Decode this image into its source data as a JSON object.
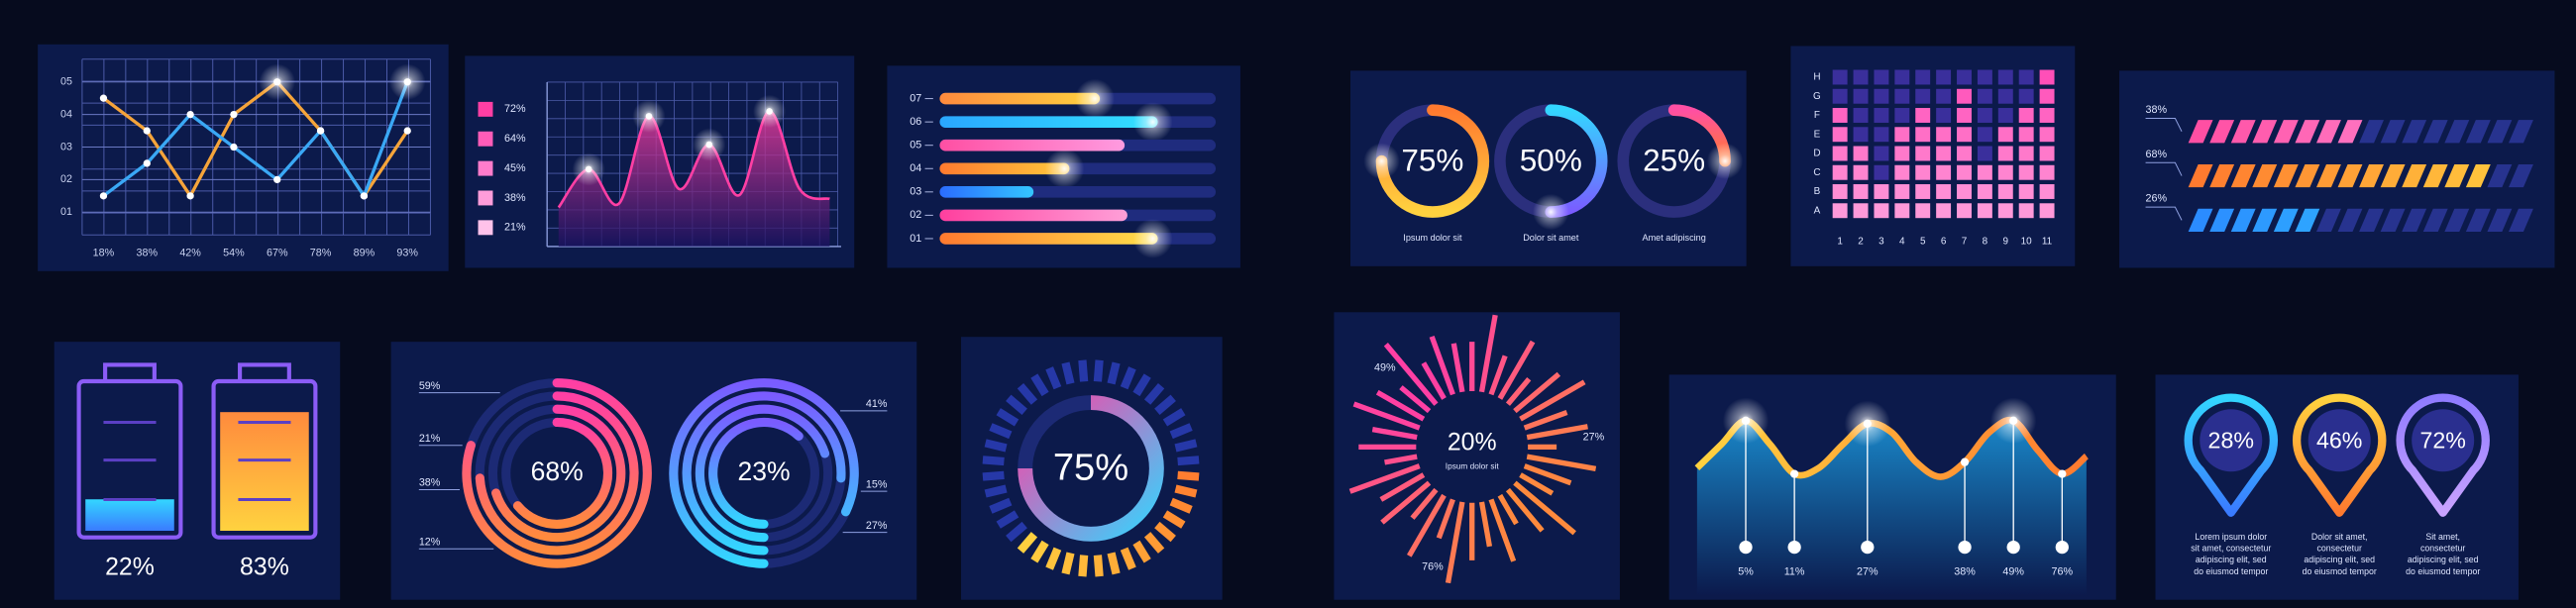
{
  "panels": [
    {
      "type": "line",
      "ylim": [
        0.3,
        5.7
      ],
      "yticks": [
        {
          "value": 1,
          "label": "01"
        },
        {
          "value": 2,
          "label": "02"
        },
        {
          "value": 3,
          "label": "03"
        },
        {
          "value": 4,
          "label": "04"
        },
        {
          "value": 5,
          "label": "05"
        }
      ],
      "categories": [
        "18%",
        "38%",
        "42%",
        "54%",
        "67%",
        "78%",
        "89%",
        "93%"
      ],
      "series": [
        {
          "color": "#f5a43a",
          "values": [
            4.5,
            3.5,
            1.5,
            4,
            5,
            3.5,
            1.5,
            3.5
          ]
        },
        {
          "color": "#3aa8f5",
          "values": [
            1.5,
            2.5,
            4,
            3,
            2,
            3.5,
            1.5,
            5
          ]
        }
      ]
    },
    {
      "type": "area",
      "ylim": [
        0,
        100
      ],
      "color": "#ff3fa4",
      "values": [
        5,
        36,
        8,
        79,
        20,
        56,
        15,
        83,
        20,
        12
      ],
      "legend": [
        {
          "label": "72%",
          "color": "#ff3fa4"
        },
        {
          "label": "64%",
          "color": "#ff5cb8"
        },
        {
          "label": "45%",
          "color": "#ff7ccb"
        },
        {
          "label": "38%",
          "color": "#ff9dda"
        },
        {
          "label": "21%",
          "color": "#ffc2ea"
        }
      ]
    },
    {
      "type": "hbar",
      "xlim": [
        0,
        100
      ],
      "categories": [
        "07",
        "06",
        "05",
        "04",
        "03",
        "02",
        "01"
      ],
      "values": [
        58,
        79,
        67,
        47,
        34,
        68,
        79
      ],
      "colors": [
        [
          "#ff8a3d",
          "#ffd23f"
        ],
        [
          "#2aa7ff",
          "#33e0ff"
        ],
        [
          "#ff4fa3",
          "#ff9be0"
        ],
        [
          "#ff7a2f",
          "#ffc93c"
        ],
        [
          "#2b6cff",
          "#34c6ff"
        ],
        [
          "#ff3f9e",
          "#ff9fd8"
        ],
        [
          "#ff7a2f",
          "#ffe04a"
        ]
      ]
    },
    {
      "type": "rings",
      "items": [
        {
          "value": 75,
          "label": "75%",
          "caption": "Ipsum dolor sit",
          "colors": [
            "#ff7a2f",
            "#ffd23f"
          ]
        },
        {
          "value": 50,
          "label": "50%",
          "caption": "Dolor sit amet",
          "colors": [
            "#33d6ff",
            "#7a5cff"
          ]
        },
        {
          "value": 25,
          "label": "25%",
          "caption": "Amet adipiscing",
          "colors": [
            "#ff4fa3",
            "#ff7a2f"
          ]
        }
      ]
    },
    {
      "type": "grid",
      "rows": [
        "H",
        "G",
        "F",
        "E",
        "D",
        "C",
        "B",
        "A"
      ],
      "columns": [
        "1",
        "2",
        "3",
        "4",
        "5",
        "6",
        "7",
        "8",
        "9",
        "10",
        "11"
      ],
      "values": [
        6,
        4,
        2,
        5,
        6,
        5,
        7,
        3,
        5,
        6,
        8
      ],
      "colors": [
        "#ff4fb8",
        "#ffa3de"
      ],
      "dim": "#3a2f9c"
    },
    {
      "type": "stripes",
      "xlim": [
        0,
        80
      ],
      "values": [
        38,
        68,
        26
      ],
      "value_labels": [
        "38%",
        "68%",
        "26%"
      ],
      "colors": [
        [
          "#ff4fa3",
          "#ff9be0"
        ],
        [
          "#ff7a2f",
          "#ffd23f"
        ],
        [
          "#2b8cff",
          "#33d6ff"
        ]
      ],
      "dim": "#27338f"
    },
    {
      "type": "battery",
      "ylim": [
        0,
        100
      ],
      "values": [
        22,
        83
      ],
      "value_labels": [
        "22%",
        "83%"
      ],
      "stroke": "#8b5cf6",
      "colors": [
        [
          "#33d6ff",
          "#3a7bff"
        ],
        [
          "#ff8a3d",
          "#ffd23f"
        ]
      ]
    },
    {
      "type": "concentric",
      "groups": [
        {
          "label": "68%",
          "side": [
            "59%",
            "21%",
            "38%",
            "12%"
          ],
          "rings": [
            80,
            74,
            70,
            64
          ],
          "colors": [
            "#ff3fa4",
            "#ff8a3d"
          ]
        },
        {
          "label": "23%",
          "side": [
            "41%",
            "15%",
            "27%"
          ],
          "rings": [
            82,
            76,
            70,
            62
          ],
          "colors": [
            "#7a5cff",
            "#33d6ff"
          ]
        }
      ]
    },
    {
      "type": "gauge",
      "value": 75,
      "label": "75%",
      "colors": [
        "#ff3fa4",
        "#33d6ff"
      ],
      "segment_colors": [
        "#ff7a2f",
        "#ffd23f",
        "#2638a8"
      ]
    },
    {
      "type": "burst",
      "ylim": [
        0,
        100
      ],
      "label": "20%",
      "caption": "Ipsum dolor sit",
      "side": [
        "49%",
        "27%",
        "76%"
      ],
      "colors": [
        "#ff3fa4",
        "#ff8a3d"
      ],
      "values": [
        60,
        95,
        50,
        80,
        40,
        70,
        90,
        55,
        75,
        35,
        85,
        60,
        45,
        95,
        65,
        40,
        80,
        55,
        70,
        100,
        50,
        85,
        45,
        75,
        60,
        90,
        40,
        70,
        55,
        85,
        65,
        45,
        95,
        50,
        75,
        60
      ]
    },
    {
      "type": "wave",
      "ylim": [
        0,
        100
      ],
      "values": [
        20,
        60,
        100,
        60,
        10,
        20,
        60,
        95,
        80,
        30,
        5,
        30,
        80,
        100,
        50,
        10,
        40
      ],
      "colors": [
        "#ffd23f",
        "#ff7a2f"
      ],
      "pins": [
        "5%",
        "11%",
        "27%",
        "38%",
        "49%",
        "76%"
      ]
    },
    {
      "type": "pins",
      "items": [
        {
          "label": "28%",
          "colors": [
            "#33d6ff",
            "#3a7bff"
          ],
          "text": [
            "Lorem ipsum dolor",
            "sit amet, consectetur",
            "adipiscing elit, sed",
            "do eiusmod tempor"
          ]
        },
        {
          "label": "46%",
          "colors": [
            "#ffd23f",
            "#ff7a2f"
          ],
          "text": [
            "Dolor sit amet,",
            "consectetur",
            "adipiscing elit, sed",
            "do eiusmod tempor"
          ]
        },
        {
          "label": "72%",
          "colors": [
            "#8f7bff",
            "#c9a3ff"
          ],
          "text": [
            "Sit amet,",
            "consectetur",
            "adipiscing elit, sed",
            "do eiusmod tempor"
          ]
        }
      ]
    }
  ]
}
